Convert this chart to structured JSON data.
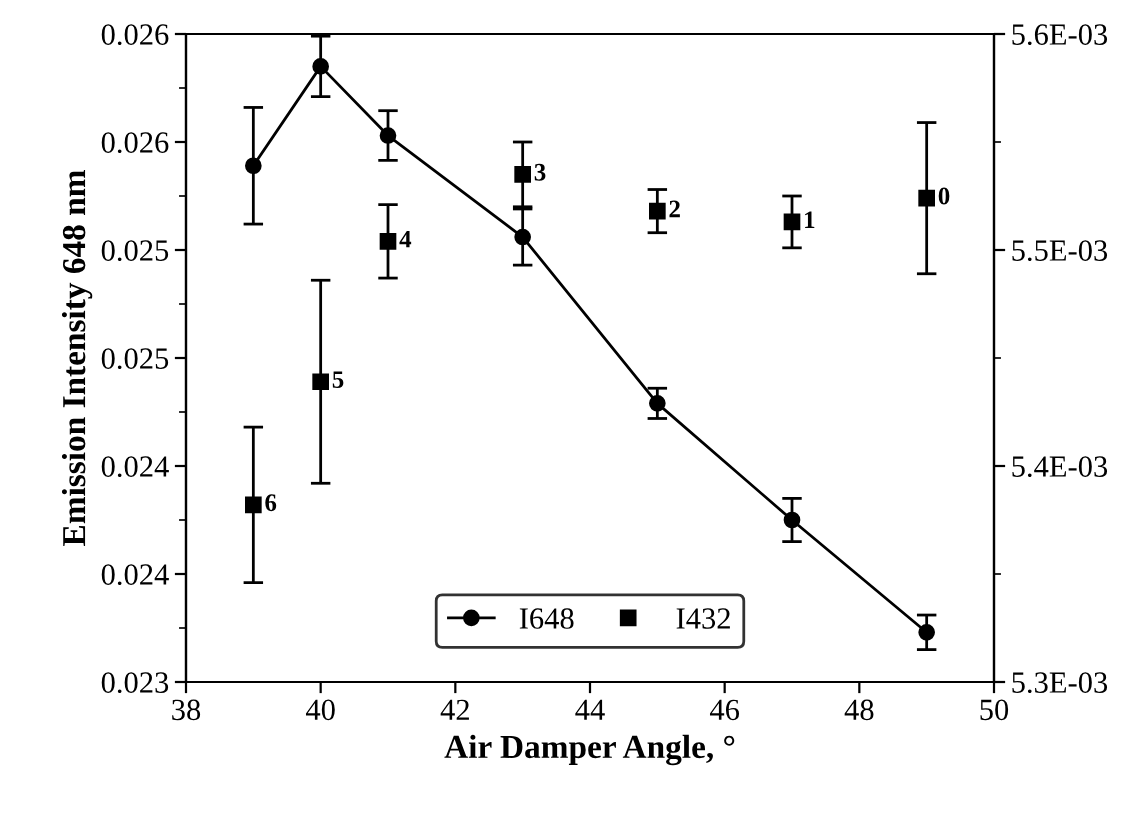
{
  "chart_data": {
    "type": "line",
    "xlabel": "Air Damper Angle, °",
    "ylabel": "Emission Intensity 648 nm",
    "x": [
      39,
      40,
      41,
      43,
      45,
      47,
      49
    ],
    "series": [
      {
        "name": "I648",
        "color": "#000000",
        "marker": "circle",
        "values": [
          0.02539,
          0.02585,
          0.02553,
          0.02506,
          0.02429,
          0.02375,
          0.02323
        ],
        "errors": [
          0.00027,
          0.00014,
          0.000115,
          0.00013,
          7e-05,
          0.0001,
          8e-05
        ]
      },
      {
        "name": "I432",
        "type": "scatter",
        "axis": "y2",
        "color": "#000000",
        "marker": "square",
        "values": [
          0.005382,
          0.005439,
          0.005504,
          0.005535,
          0.005518,
          0.005513,
          0.005524
        ],
        "errors": [
          3.6e-05,
          4.7e-05,
          1.7e-05,
          1.5e-05,
          1e-05,
          1.2e-05,
          3.5e-05
        ]
      }
    ],
    "xlim": [
      38,
      50
    ],
    "xticks": [
      38,
      40,
      42,
      44,
      46,
      48,
      50
    ],
    "ylim": [
      0.023,
      0.026
    ],
    "yticks": [
      0.023,
      {
        "value": 0.0235,
        "label": "0.024"
      },
      0.024,
      {
        "value": 0.0245,
        "label": "0.025"
      },
      0.025,
      {
        "value": 0.0255,
        "label": "0.026"
      },
      0.026
    ],
    "y2lim": [
      0.0053,
      0.0056
    ],
    "y2ticks": [
      {
        "value": 0.0053,
        "label": "5.3E-03"
      },
      {
        "value": 0.0054,
        "label": "5.4E-03"
      },
      {
        "value": 0.0055,
        "label": "5.5E-03"
      },
      {
        "value": 0.0056,
        "label": "5.6E-03"
      }
    ],
    "annotations": [
      "6",
      "5",
      "4",
      "3",
      "2",
      "1",
      "0"
    ],
    "grid": false,
    "legend": "bottom"
  }
}
